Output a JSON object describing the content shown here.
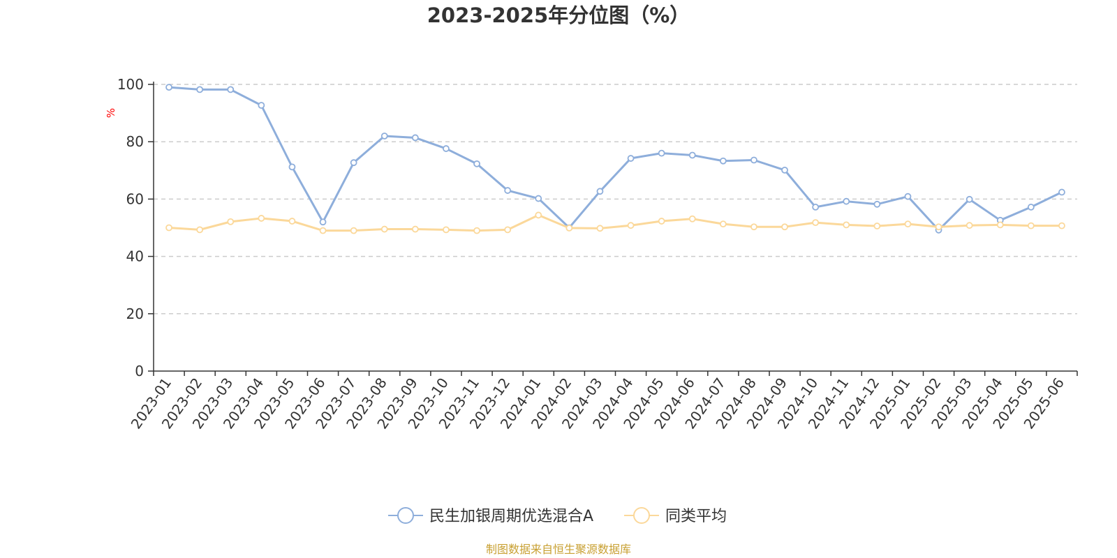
{
  "chart_data": {
    "type": "line",
    "title": "2023-2025年分位图（%）",
    "ylabel": "%",
    "xlabel": "",
    "ylim": [
      0,
      100
    ],
    "yticks": [
      0,
      20,
      40,
      60,
      80,
      100
    ],
    "grid": true,
    "legend_position": "bottom",
    "categories": [
      "2023-01",
      "2023-02",
      "2023-03",
      "2023-04",
      "2023-05",
      "2023-06",
      "2023-07",
      "2023-08",
      "2023-09",
      "2023-10",
      "2023-11",
      "2023-12",
      "2024-01",
      "2024-02",
      "2024-03",
      "2024-04",
      "2024-05",
      "2024-06",
      "2024-07",
      "2024-08",
      "2024-09",
      "2024-10",
      "2024-11",
      "2024-12",
      "2025-01",
      "2025-02",
      "2025-03",
      "2025-04",
      "2025-05",
      "2025-06"
    ],
    "series": [
      {
        "name": "民生加银周期优选混合A",
        "color": "#8eaedb",
        "values": [
          99.0,
          98.2,
          98.2,
          92.7,
          71.2,
          52.0,
          72.7,
          82.0,
          81.4,
          77.6,
          72.3,
          63.0,
          60.2,
          50.0,
          62.7,
          74.2,
          76.0,
          75.3,
          73.3,
          73.6,
          70.1,
          57.2,
          59.2,
          58.2,
          60.9,
          49.2,
          59.9,
          52.6,
          57.2,
          62.4
        ]
      },
      {
        "name": "同类平均",
        "color": "#fbd89a",
        "values": [
          50.0,
          49.3,
          52.1,
          53.3,
          52.3,
          49.0,
          49.0,
          49.5,
          49.5,
          49.3,
          49.0,
          49.3,
          54.4,
          49.9,
          49.8,
          50.8,
          52.3,
          53.1,
          51.3,
          50.3,
          50.3,
          51.8,
          51.0,
          50.6,
          51.3,
          50.3,
          50.8,
          51.0,
          50.7,
          50.7
        ]
      }
    ]
  },
  "source_text": "制图数据来自恒生聚源数据库"
}
